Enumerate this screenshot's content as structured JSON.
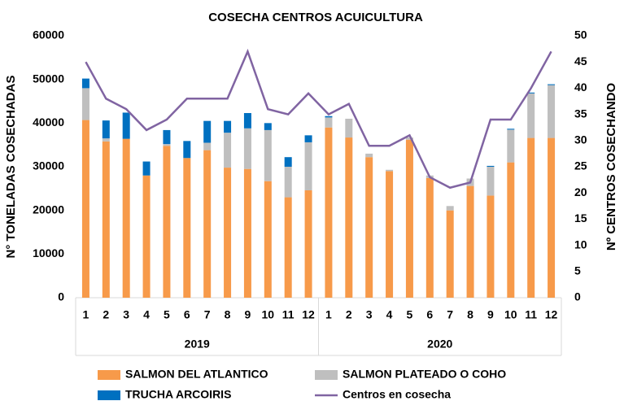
{
  "chart_data": {
    "type": "bar",
    "title": "COSECHA CENTROS ACUICULTURA",
    "ylabel": "N° TONELADAS COSECHADAS",
    "y2label": "Nº CENTROS COSECHANDO",
    "categories": [
      "1",
      "2",
      "3",
      "4",
      "5",
      "6",
      "7",
      "8",
      "9",
      "10",
      "11",
      "12",
      "1",
      "2",
      "3",
      "4",
      "5",
      "6",
      "7",
      "8",
      "9",
      "10",
      "11",
      "12"
    ],
    "groups": [
      "2019",
      "2020"
    ],
    "stacked": true,
    "series": [
      {
        "name": "SALMON DEL ATLANTICO",
        "color": "#f79a4a",
        "type": "bar",
        "values": [
          40700,
          35800,
          36400,
          28000,
          34800,
          32000,
          33800,
          29800,
          29500,
          26700,
          23000,
          24600,
          39000,
          36700,
          32200,
          29000,
          36200,
          27400,
          20000,
          25600,
          23400,
          31000,
          36600,
          36600
        ]
      },
      {
        "name": "SALMON PLATEADO O COHO",
        "color": "#bfbfbf",
        "type": "bar",
        "values": [
          7300,
          700,
          0,
          0,
          400,
          0,
          1700,
          8000,
          9300,
          11700,
          7000,
          11000,
          2300,
          4300,
          800,
          300,
          500,
          600,
          1000,
          1700,
          6600,
          7500,
          10200,
          12100
        ]
      },
      {
        "name": "TRUCHA ARCOIRIS",
        "color": "#0070c0",
        "type": "bar",
        "values": [
          2200,
          4100,
          6000,
          3200,
          3200,
          3900,
          5000,
          2700,
          3500,
          1600,
          2200,
          1600,
          300,
          0,
          0,
          0,
          0,
          0,
          0,
          0,
          200,
          200,
          200,
          200
        ]
      },
      {
        "name": "Centros en cosecha",
        "color": "#8064a2",
        "type": "line",
        "axis": "y2",
        "values": [
          45,
          38,
          36,
          32,
          34,
          38,
          38,
          38,
          47,
          36,
          35,
          39,
          35,
          37,
          29,
          29,
          31,
          23,
          21,
          22,
          34,
          34,
          40,
          47
        ]
      }
    ],
    "ylim": [
      0,
      60000
    ],
    "yticks": [
      0,
      10000,
      20000,
      30000,
      40000,
      50000,
      60000
    ],
    "y2lim": [
      0,
      50
    ],
    "y2ticks": [
      0,
      5,
      10,
      15,
      20,
      25,
      30,
      35,
      40,
      45,
      50
    ],
    "legend": "bottom"
  }
}
